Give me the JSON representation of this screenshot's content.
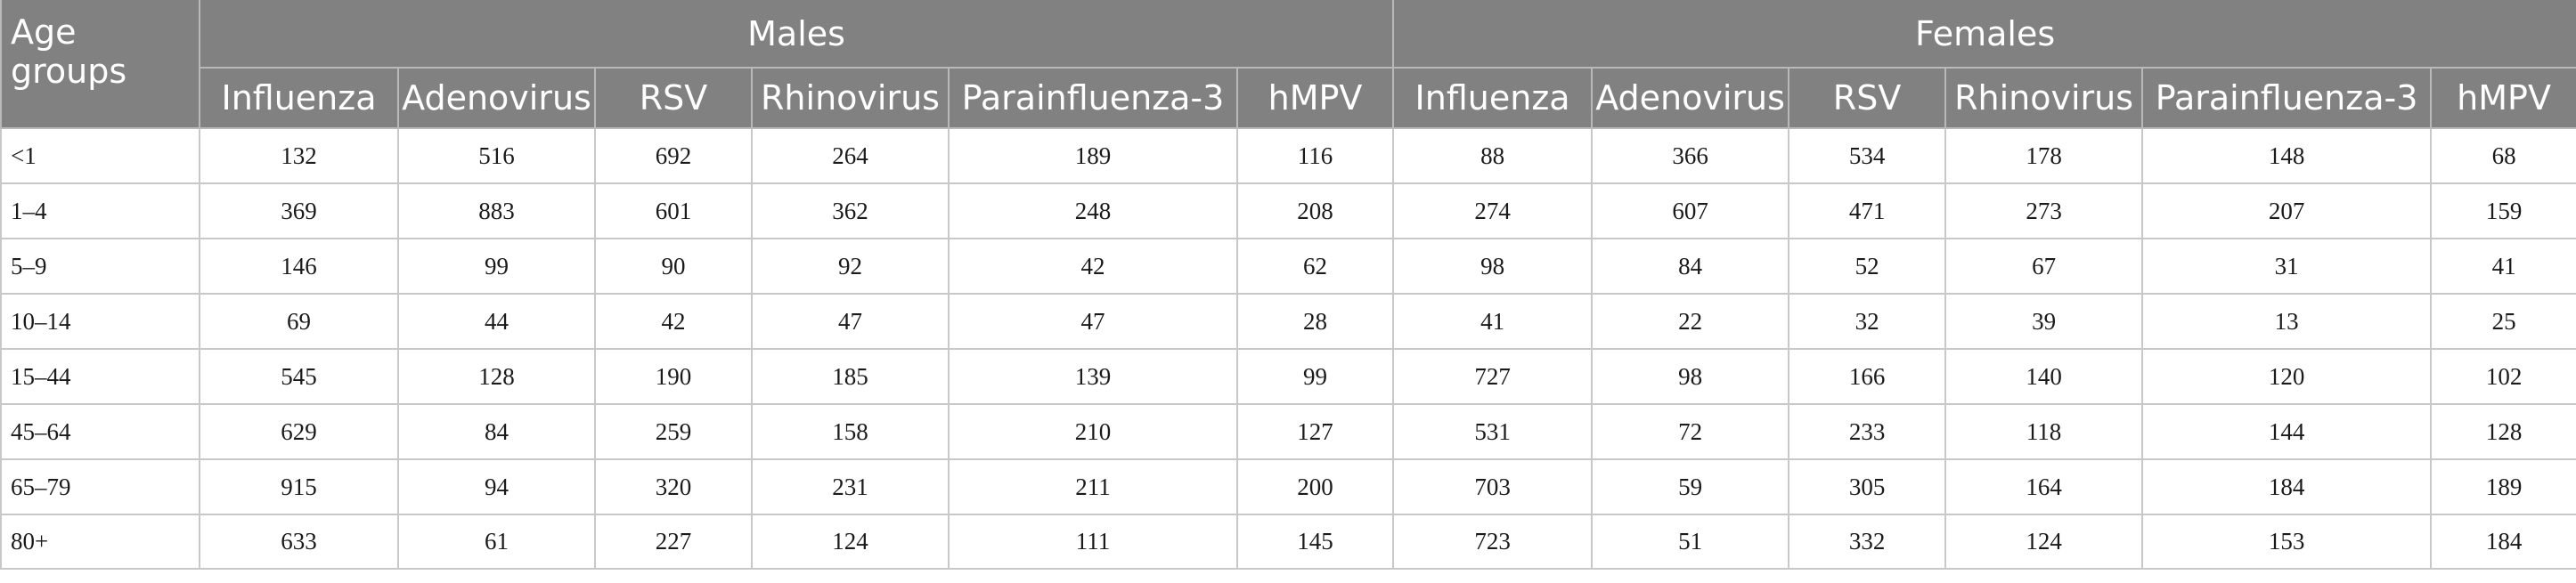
{
  "table": {
    "age_header": "Age groups",
    "groups": [
      "Males",
      "Females"
    ],
    "viruses": [
      "Influenza",
      "Adenovirus",
      "RSV",
      "Rhinovirus",
      "Parainfluenza-3",
      "hMPV"
    ],
    "rows": [
      {
        "age": "<1",
        "males": [
          "132",
          "516",
          "692",
          "264",
          "189",
          "116"
        ],
        "females": [
          "88",
          "366",
          "534",
          "178",
          "148",
          "68"
        ]
      },
      {
        "age": "1–4",
        "males": [
          "369",
          "883",
          "601",
          "362",
          "248",
          "208"
        ],
        "females": [
          "274",
          "607",
          "471",
          "273",
          "207",
          "159"
        ]
      },
      {
        "age": "5–9",
        "males": [
          "146",
          "99",
          "90",
          "92",
          "42",
          "62"
        ],
        "females": [
          "98",
          "84",
          "52",
          "67",
          "31",
          "41"
        ]
      },
      {
        "age": "10–14",
        "males": [
          "69",
          "44",
          "42",
          "47",
          "47",
          "28"
        ],
        "females": [
          "41",
          "22",
          "32",
          "39",
          "13",
          "25"
        ]
      },
      {
        "age": "15–44",
        "males": [
          "545",
          "128",
          "190",
          "185",
          "139",
          "99"
        ],
        "females": [
          "727",
          "98",
          "166",
          "140",
          "120",
          "102"
        ]
      },
      {
        "age": "45–64",
        "males": [
          "629",
          "84",
          "259",
          "158",
          "210",
          "127"
        ],
        "females": [
          "531",
          "72",
          "233",
          "118",
          "144",
          "128"
        ]
      },
      {
        "age": "65–79",
        "males": [
          "915",
          "94",
          "320",
          "231",
          "211",
          "200"
        ],
        "females": [
          "703",
          "59",
          "305",
          "164",
          "184",
          "189"
        ]
      },
      {
        "age": "80+",
        "males": [
          "633",
          "61",
          "227",
          "124",
          "111",
          "145"
        ],
        "females": [
          "723",
          "51",
          "332",
          "124",
          "153",
          "184"
        ]
      }
    ]
  }
}
